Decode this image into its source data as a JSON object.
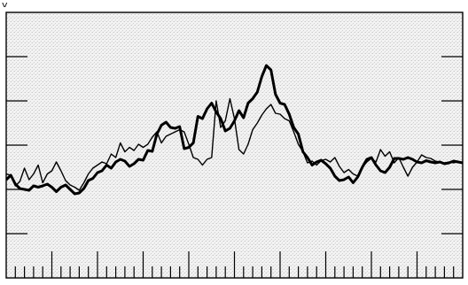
{
  "header": {
    "text": "y"
  },
  "chart_data": {
    "type": "line",
    "title": "",
    "xlabel": "",
    "ylabel": "",
    "x": [
      0,
      1,
      2,
      3,
      4,
      5,
      6,
      7,
      8,
      9,
      10,
      11,
      12,
      13,
      14,
      15,
      16,
      17,
      18,
      19,
      20,
      21,
      22,
      23,
      24,
      25,
      26,
      27,
      28,
      29,
      30,
      31,
      32,
      33,
      34,
      35,
      36,
      37,
      38,
      39,
      40,
      41,
      42,
      43,
      44,
      45,
      46,
      47,
      48,
      49,
      50,
      51,
      52,
      53,
      54,
      55,
      56,
      57,
      58,
      59,
      60,
      61,
      62,
      63,
      64,
      65,
      66,
      67,
      68,
      69,
      70,
      71,
      72,
      73,
      74,
      75,
      76,
      77,
      78,
      79,
      80,
      81,
      82,
      83,
      84,
      85,
      86,
      87,
      88,
      89,
      90,
      91,
      92,
      93,
      94,
      95,
      96,
      97,
      98,
      99,
      100
    ],
    "xlim": [
      0,
      100
    ],
    "ylim": [
      0,
      6
    ],
    "grid": false,
    "series": [
      {
        "color": "#000000",
        "width": "bold",
        "values": [
          2.22,
          2.32,
          2.12,
          2.02,
          2.0,
          1.98,
          2.08,
          2.05,
          2.08,
          2.12,
          2.05,
          1.95,
          2.05,
          2.1,
          2.0,
          1.9,
          1.92,
          2.02,
          2.2,
          2.25,
          2.38,
          2.42,
          2.55,
          2.48,
          2.62,
          2.68,
          2.64,
          2.52,
          2.58,
          2.68,
          2.66,
          2.88,
          2.86,
          3.25,
          3.45,
          3.52,
          3.4,
          3.38,
          3.42,
          2.92,
          2.95,
          3.05,
          3.65,
          3.6,
          3.82,
          3.95,
          3.75,
          3.6,
          3.32,
          3.38,
          3.55,
          3.78,
          3.62,
          3.95,
          4.05,
          4.2,
          4.55,
          4.8,
          4.7,
          4.15,
          3.95,
          3.92,
          3.7,
          3.4,
          3.25,
          2.85,
          2.72,
          2.55,
          2.62,
          2.66,
          2.58,
          2.48,
          2.3,
          2.2,
          2.22,
          2.28,
          2.15,
          2.28,
          2.5,
          2.68,
          2.72,
          2.55,
          2.42,
          2.38,
          2.5,
          2.7,
          2.7,
          2.68,
          2.72,
          2.68,
          2.62,
          2.6,
          2.65,
          2.62,
          2.6,
          2.62,
          2.58,
          2.6,
          2.64,
          2.62,
          2.6
        ]
      },
      {
        "color": "#000000",
        "width": "thin",
        "values": [
          2.35,
          2.32,
          2.08,
          2.18,
          2.48,
          2.22,
          2.35,
          2.55,
          2.15,
          2.35,
          2.42,
          2.62,
          2.42,
          2.2,
          2.1,
          2.05,
          1.98,
          2.15,
          2.35,
          2.48,
          2.55,
          2.62,
          2.58,
          2.8,
          2.72,
          3.05,
          2.85,
          2.95,
          2.88,
          3.02,
          2.95,
          3.02,
          3.18,
          3.3,
          3.05,
          3.2,
          3.25,
          3.3,
          3.35,
          3.3,
          3.02,
          2.72,
          2.68,
          2.55,
          2.68,
          2.72,
          4.0,
          3.4,
          3.55,
          4.05,
          3.6,
          2.9,
          2.8,
          3.02,
          3.35,
          3.5,
          3.68,
          3.82,
          3.92,
          3.72,
          3.7,
          3.6,
          3.55,
          3.3,
          3.02,
          2.85,
          2.6,
          2.64,
          2.55,
          2.65,
          2.68,
          2.62,
          2.72,
          2.52,
          2.38,
          2.45,
          2.35,
          2.3,
          2.5,
          2.62,
          2.7,
          2.62,
          2.9,
          2.75,
          2.85,
          2.6,
          2.72,
          2.5,
          2.3,
          2.5,
          2.62,
          2.78,
          2.72,
          2.7,
          2.64,
          2.62,
          2.6,
          2.62,
          2.6,
          2.62,
          2.6
        ]
      }
    ],
    "y_tick_marks": [
      1,
      2,
      3,
      4,
      5
    ],
    "x_tick_marks": 50
  }
}
